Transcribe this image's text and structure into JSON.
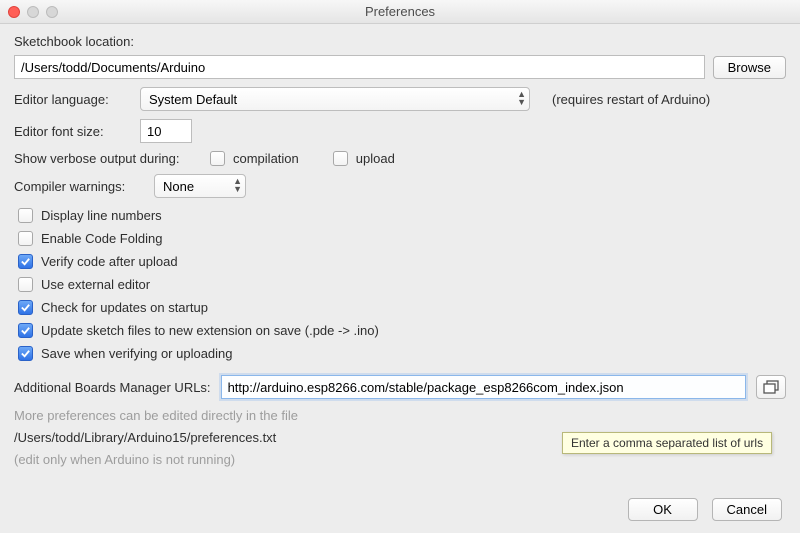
{
  "window": {
    "title": "Preferences"
  },
  "sketchbook": {
    "label": "Sketchbook location:",
    "path": "/Users/todd/Documents/Arduino",
    "browse": "Browse"
  },
  "language": {
    "label": "Editor language:",
    "value": "System Default",
    "note": "(requires restart of Arduino)"
  },
  "fontsize": {
    "label": "Editor font size:",
    "value": "10"
  },
  "verbose": {
    "label": "Show verbose output during:",
    "compilation_label": "compilation",
    "upload_label": "upload",
    "compilation_checked": false,
    "upload_checked": false
  },
  "warnings": {
    "label": "Compiler warnings:",
    "value": "None"
  },
  "options": [
    {
      "label": "Display line numbers",
      "checked": false
    },
    {
      "label": "Enable Code Folding",
      "checked": false
    },
    {
      "label": "Verify code after upload",
      "checked": true
    },
    {
      "label": "Use external editor",
      "checked": false
    },
    {
      "label": "Check for updates on startup",
      "checked": true
    },
    {
      "label": "Update sketch files to new extension on save (.pde -> .ino)",
      "checked": true
    },
    {
      "label": "Save when verifying or uploading",
      "checked": true
    }
  ],
  "boards": {
    "label": "Additional Boards Manager URLs:",
    "value": "http://arduino.esp8266.com/stable/package_esp8266com_index.json",
    "tooltip": "Enter a comma separated list of urls"
  },
  "more": {
    "line1": "More preferences can be edited directly in the file",
    "path": "/Users/todd/Library/Arduino15/preferences.txt",
    "line2": "(edit only when Arduino is not running)"
  },
  "footer": {
    "ok": "OK",
    "cancel": "Cancel"
  }
}
